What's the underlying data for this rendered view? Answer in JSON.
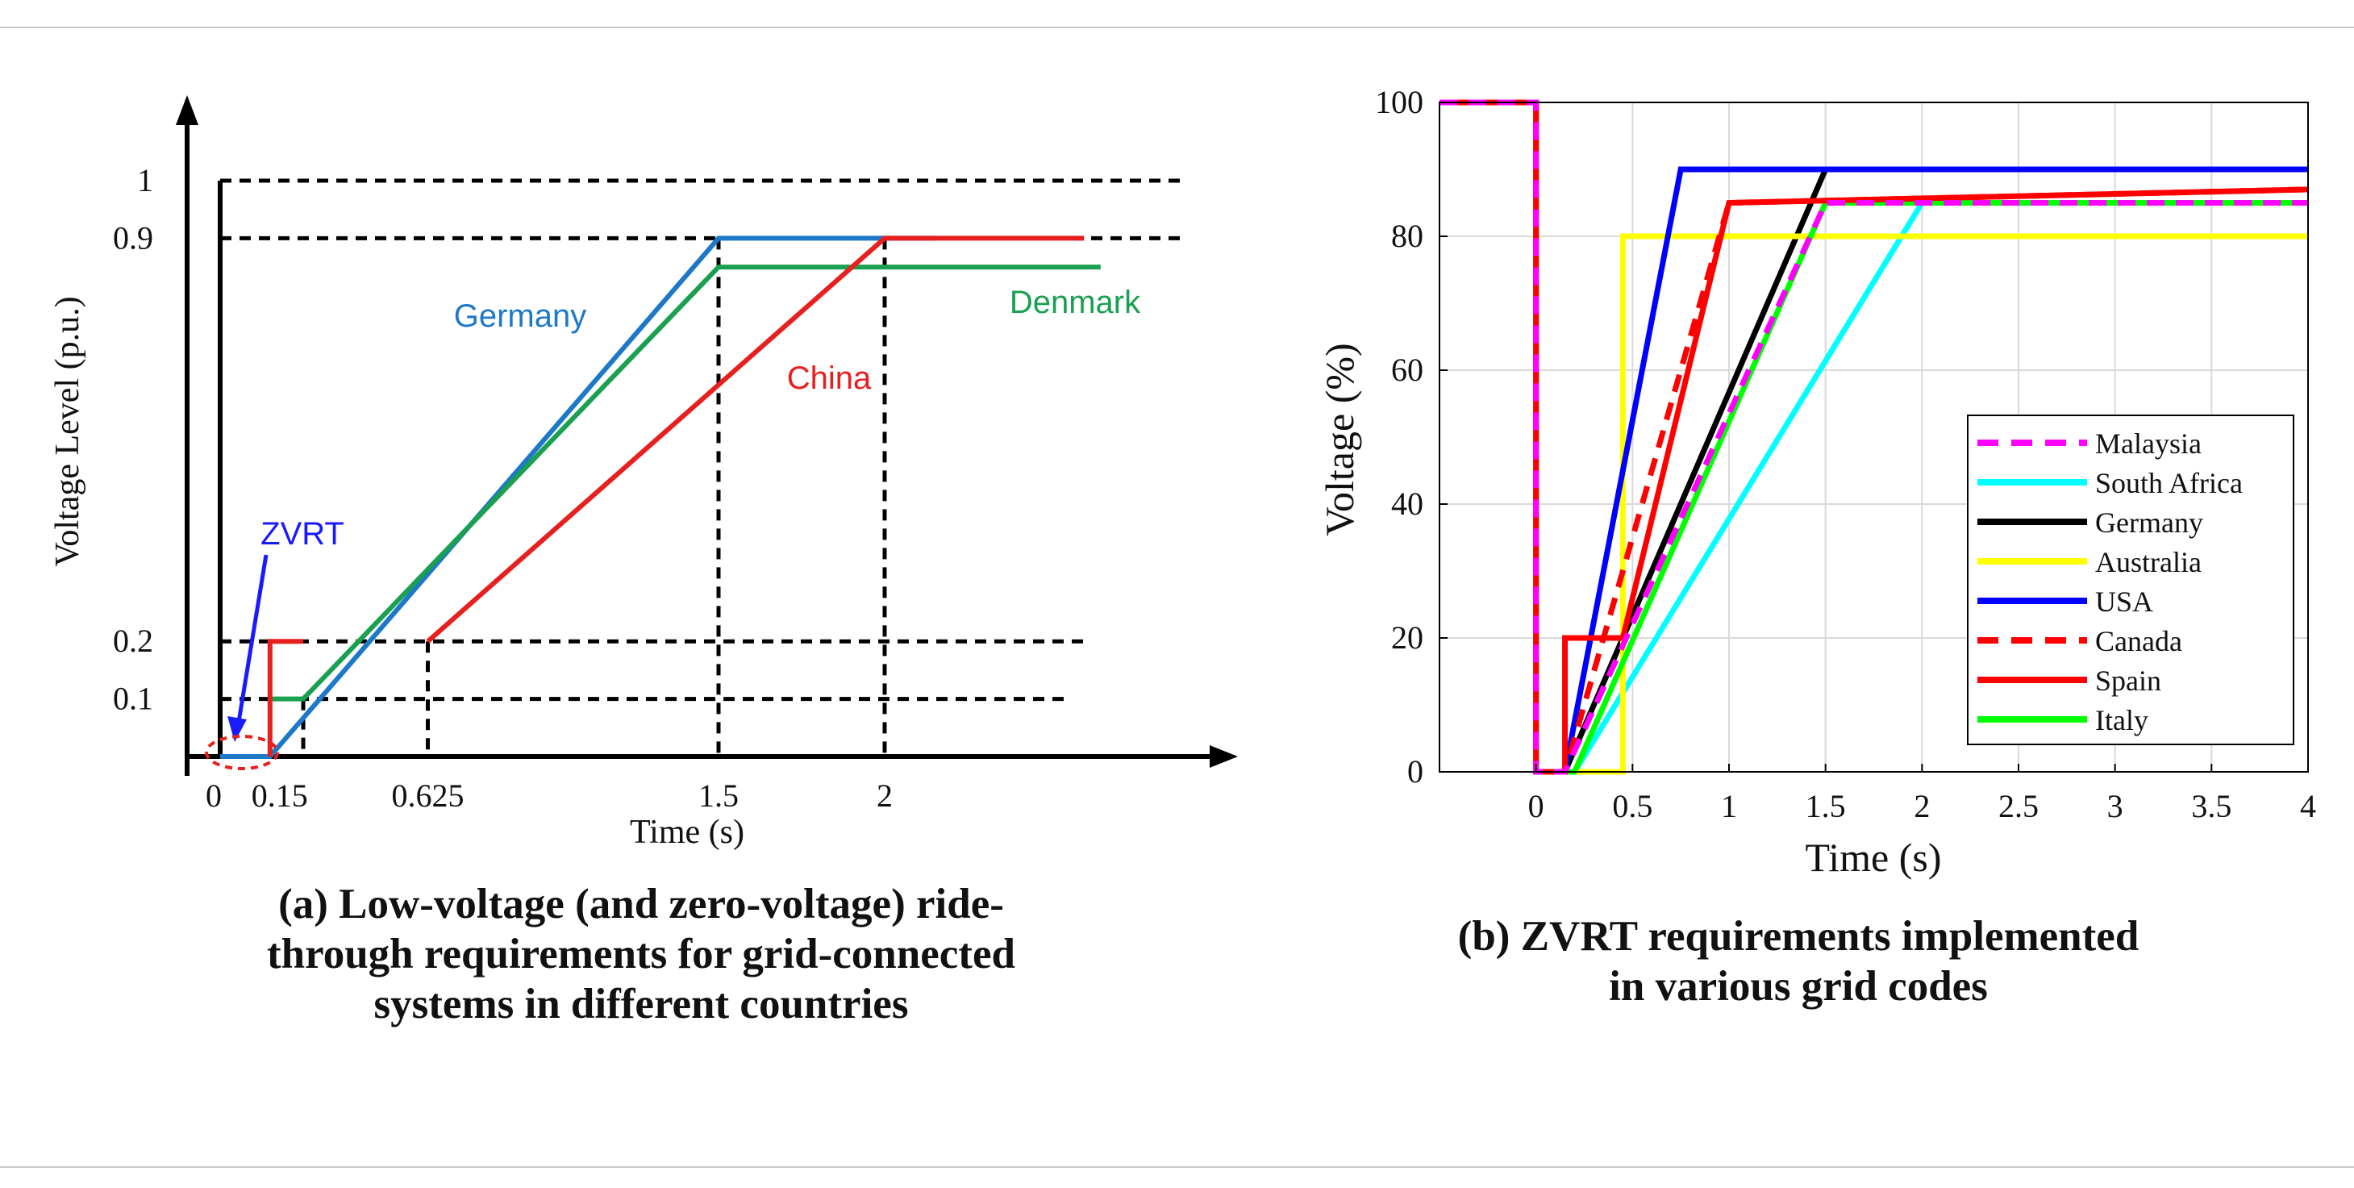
{
  "chart_data": [
    {
      "type": "line",
      "panel": "a",
      "xlabel": "Time (s)",
      "ylabel": "Voltage Level (p.u.)",
      "xlim": [
        -0.17,
        3.0
      ],
      "ylim": [
        0,
        1.07
      ],
      "xticks": [
        {
          "value": 0,
          "label": "0"
        },
        {
          "value": 0.15,
          "label": "0.15"
        },
        {
          "value": 0.625,
          "label": "0.625"
        },
        {
          "value": 1.5,
          "label": "1.5"
        },
        {
          "value": 2,
          "label": "2"
        }
      ],
      "yticks": [
        {
          "value": 0.1,
          "label": "0.1"
        },
        {
          "value": 0.2,
          "label": "0.2"
        },
        {
          "value": 0.9,
          "label": "0.9"
        },
        {
          "value": 1,
          "label": "1"
        }
      ],
      "reference_lines": {
        "horizontal": [
          {
            "value": 1,
            "from": 0,
            "to": 2.9
          },
          {
            "value": 0.9,
            "from": 0,
            "to": 2.9
          },
          {
            "value": 0.2,
            "from": 0,
            "to": 2.6
          },
          {
            "value": 0.1,
            "from": 0,
            "to": 2.55
          }
        ],
        "vertical": [
          0.25,
          0.625,
          1.5,
          2
        ]
      },
      "series": [
        {
          "name": "Germany",
          "color": "#1e78c8",
          "x": [
            0,
            0.15,
            1.5,
            2.15
          ],
          "y": [
            0,
            0,
            0.9,
            0.9
          ]
        },
        {
          "name": "Denmark",
          "color": "#1aa050",
          "x": [
            0.15,
            0.25,
            1.5,
            2.65
          ],
          "y": [
            0.1,
            0.1,
            0.85,
            0.85
          ]
        },
        {
          "name": "China",
          "color": "#e81f1f",
          "x": [
            0.625,
            2,
            2.6
          ],
          "y": [
            0.2,
            0.9,
            0.9
          ]
        },
        {
          "name": "ZVRT",
          "color": "#e81f1f",
          "x": [
            0.15,
            0.15,
            0.25
          ],
          "y": [
            0,
            0.2,
            0.2
          ]
        }
      ],
      "annotations": [
        {
          "text": "Germany",
          "color": "#1e78c8"
        },
        {
          "text": "Denmark",
          "color": "#1aa050"
        },
        {
          "text": "China",
          "color": "#e81f1f"
        },
        {
          "text": "ZVRT",
          "color": "#1a1aff"
        }
      ],
      "title": "(a) Low-voltage (and zero-voltage) ride-through requirements for grid-connected systems in different countries"
    },
    {
      "type": "line",
      "panel": "b",
      "xlabel": "Time (s)",
      "ylabel": "Voltage (%)",
      "xlim": [
        -0.5,
        4
      ],
      "ylim": [
        0,
        100
      ],
      "grid": true,
      "xticks": [
        {
          "value": 0,
          "label": "0"
        },
        {
          "value": 0.5,
          "label": "0.5"
        },
        {
          "value": 1,
          "label": "1"
        },
        {
          "value": 1.5,
          "label": "1.5"
        },
        {
          "value": 2,
          "label": "2"
        },
        {
          "value": 2.5,
          "label": "2.5"
        },
        {
          "value": 3,
          "label": "3"
        },
        {
          "value": 3.5,
          "label": "3.5"
        },
        {
          "value": 4,
          "label": "4"
        }
      ],
      "yticks": [
        {
          "value": 0,
          "label": "0"
        },
        {
          "value": 20,
          "label": "20"
        },
        {
          "value": 40,
          "label": "40"
        },
        {
          "value": 60,
          "label": "60"
        },
        {
          "value": 80,
          "label": "80"
        },
        {
          "value": 100,
          "label": "100"
        }
      ],
      "legend_position": "center-right",
      "series": [
        {
          "name": "Malaysia",
          "color": "#ff00ff",
          "dash": true,
          "x": [
            -0.5,
            0,
            0,
            0.15,
            1.5,
            4
          ],
          "y": [
            100,
            100,
            0,
            0,
            85,
            85
          ]
        },
        {
          "name": "South Africa",
          "color": "#00ffff",
          "dash": false,
          "x": [
            -0.5,
            0,
            0,
            0.2,
            2,
            4
          ],
          "y": [
            100,
            100,
            0,
            0,
            85,
            85
          ]
        },
        {
          "name": "Germany",
          "color": "#000000",
          "dash": false,
          "x": [
            -0.5,
            0,
            0,
            0.15,
            1.5,
            4
          ],
          "y": [
            100,
            100,
            0,
            0,
            90,
            90
          ]
        },
        {
          "name": "Australia",
          "color": "#ffff00",
          "dash": false,
          "x": [
            -0.5,
            0,
            0,
            0.45,
            0.45,
            4
          ],
          "y": [
            100,
            100,
            0,
            0,
            80,
            80
          ]
        },
        {
          "name": "USA",
          "color": "#0000ff",
          "dash": false,
          "x": [
            -0.5,
            0,
            0,
            0.15,
            0.75,
            4
          ],
          "y": [
            100,
            100,
            0,
            0,
            90,
            90
          ]
        },
        {
          "name": "Canada",
          "color": "#ff0000",
          "dash": true,
          "x": [
            -0.5,
            0,
            0,
            0.15,
            1,
            4
          ],
          "y": [
            100,
            100,
            0,
            0,
            85,
            87
          ]
        },
        {
          "name": "Spain",
          "color": "#ff0000",
          "dash": false,
          "x": [
            -0.5,
            0,
            0,
            0.15,
            0.15,
            0.45,
            1,
            4
          ],
          "y": [
            100,
            100,
            0,
            0,
            20,
            20,
            85,
            87
          ]
        },
        {
          "name": "Italy",
          "color": "#00ff00",
          "dash": false,
          "x": [
            -0.5,
            0,
            0,
            0.2,
            1.5,
            4
          ],
          "y": [
            100,
            100,
            0,
            0,
            85,
            85
          ]
        }
      ],
      "title": "(b) ZVRT requirements implemented in various grid codes"
    }
  ],
  "captions": {
    "a": [
      "(a) Low-voltage (and zero-voltage) ride-",
      "through requirements for grid-connected",
      "systems in different countries"
    ],
    "b": [
      "(b) ZVRT requirements implemented",
      "in various grid codes"
    ]
  }
}
